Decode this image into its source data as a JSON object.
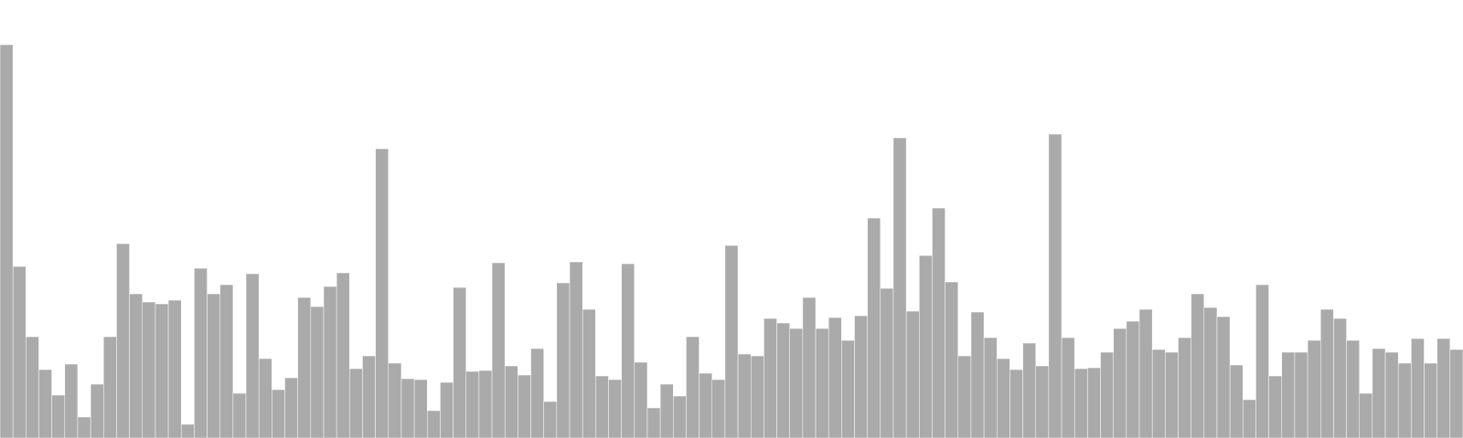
{
  "chart_data": {
    "type": "bar",
    "title": "",
    "xlabel": "",
    "ylabel": "",
    "ylim": [
      0,
      480
    ],
    "grid": false,
    "legend": "none",
    "bar_color": "#aaaaaa",
    "values": [
      431,
      188,
      111,
      75,
      47,
      81,
      23,
      59,
      111,
      213,
      158,
      149,
      147,
      151,
      15,
      186,
      158,
      168,
      49,
      180,
      87,
      53,
      66,
      154,
      144,
      166,
      181,
      76,
      90,
      317,
      82,
      65,
      64,
      30,
      61,
      165,
      73,
      74,
      192,
      79,
      69,
      98,
      40,
      170,
      193,
      141,
      68,
      64,
      191,
      83,
      33,
      59,
      46,
      111,
      71,
      64,
      211,
      92,
      90,
      131,
      126,
      120,
      154,
      120,
      132,
      107,
      134,
      241,
      164,
      329,
      139,
      200,
      252,
      171,
      90,
      138,
      110,
      87,
      75,
      104,
      79,
      333,
      110,
      76,
      77,
      94,
      120,
      128,
      141,
      97,
      94,
      110,
      158,
      143,
      133,
      80,
      42,
      168,
      68,
      94,
      94,
      107,
      141,
      131,
      107,
      49,
      98,
      94,
      82,
      109,
      82,
      109,
      97
    ]
  }
}
